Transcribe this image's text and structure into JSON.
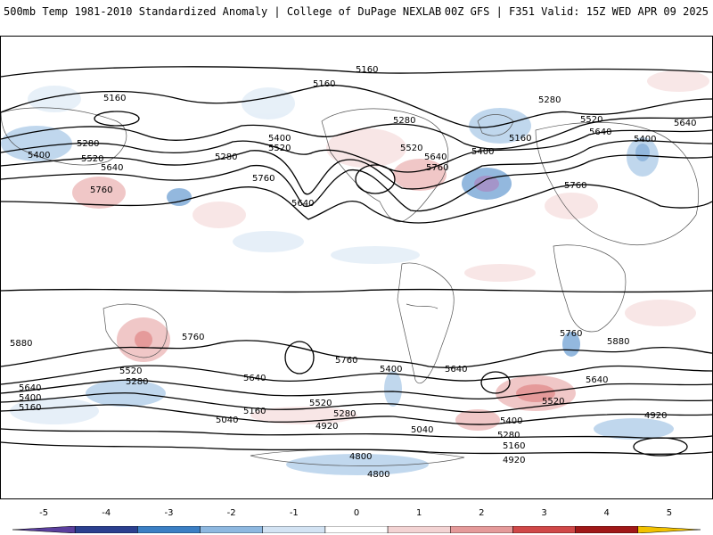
{
  "header": {
    "title_left": "500mb Temp 1981-2010 Standardized Anomaly | College of DuPage NEXLAB",
    "title_right": "00Z GFS | F351 Valid: 15Z WED APR 09 2025"
  },
  "contour_labels": [
    "5160",
    "5160",
    "5160",
    "5280",
    "5400",
    "5520",
    "5640",
    "5760",
    "5280",
    "5400",
    "5520",
    "5640",
    "5760",
    "5280",
    "5160",
    "5400",
    "5520",
    "5640",
    "5760",
    "5520",
    "5640",
    "5400",
    "5280",
    "5760",
    "5640",
    "5880",
    "5760",
    "5760",
    "5520",
    "5280",
    "5640",
    "5400",
    "5160",
    "5640",
    "5520",
    "5280",
    "5160",
    "5040",
    "4920",
    "5400",
    "5640",
    "5520",
    "5400",
    "5280",
    "5160",
    "4920",
    "5040",
    "5760",
    "5640",
    "5880",
    "4920",
    "4800",
    "4800"
  ],
  "colorbar": {
    "tick_labels": [
      "-5",
      "-4",
      "-3",
      "-2",
      "-1",
      "0",
      "1",
      "2",
      "3",
      "4",
      "5"
    ],
    "colors": [
      "#5b3f9e",
      "#2b3f8f",
      "#3b7fc4",
      "#8eb8e0",
      "#d3e3f3",
      "#ffffff",
      "#f3d3d3",
      "#e59a9a",
      "#d04848",
      "#a01818",
      "#f2c200"
    ]
  }
}
